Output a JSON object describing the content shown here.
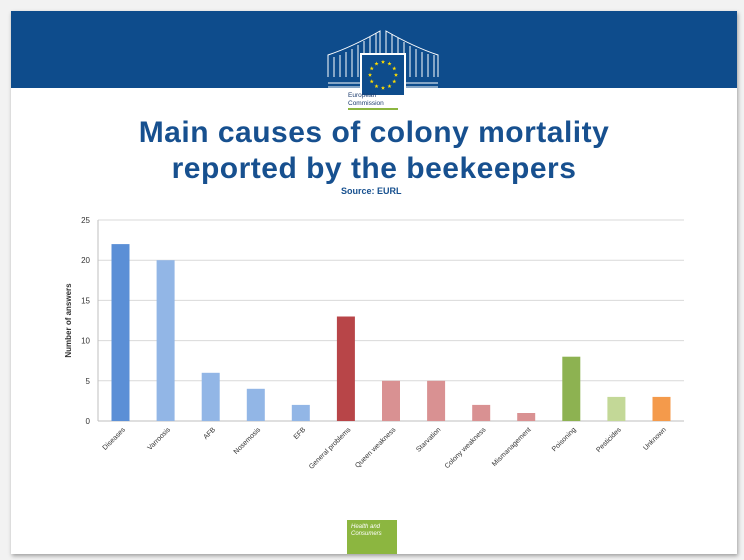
{
  "slide": {
    "logo_text": [
      "European",
      "Commission"
    ],
    "title_lines": [
      "Main causes of colony mortality",
      "reported by the beekeepers"
    ],
    "source": "Source: EURL",
    "footer_text": [
      "Health and",
      "Consumers"
    ]
  },
  "colors": {
    "header": "#0e4c8c",
    "title": "#17508f",
    "accent_green": "#8cb640"
  },
  "chart_data": {
    "type": "bar",
    "title": "",
    "xlabel": "",
    "ylabel": "Number of answers",
    "ylim": [
      0,
      25
    ],
    "yticks": [
      0,
      5,
      10,
      15,
      20,
      25
    ],
    "grid": true,
    "categories": [
      "Diseases",
      "Varroosis",
      "AFB",
      "Nosemosis",
      "EFB",
      "General problems",
      "Queen weakness",
      "Starvation",
      "Colony weakness",
      "Mismanagement",
      "Poisoning",
      "Pesticides",
      "Unknown"
    ],
    "values": [
      22,
      20,
      6,
      4,
      2,
      13,
      5,
      5,
      2,
      1,
      8,
      3,
      3
    ],
    "bar_colors": [
      "#5b8fd6",
      "#92b6e6",
      "#92b6e6",
      "#92b6e6",
      "#92b6e6",
      "#b84548",
      "#d99192",
      "#d99192",
      "#d99192",
      "#d99192",
      "#8db251",
      "#c3d897",
      "#f49a4b"
    ]
  }
}
